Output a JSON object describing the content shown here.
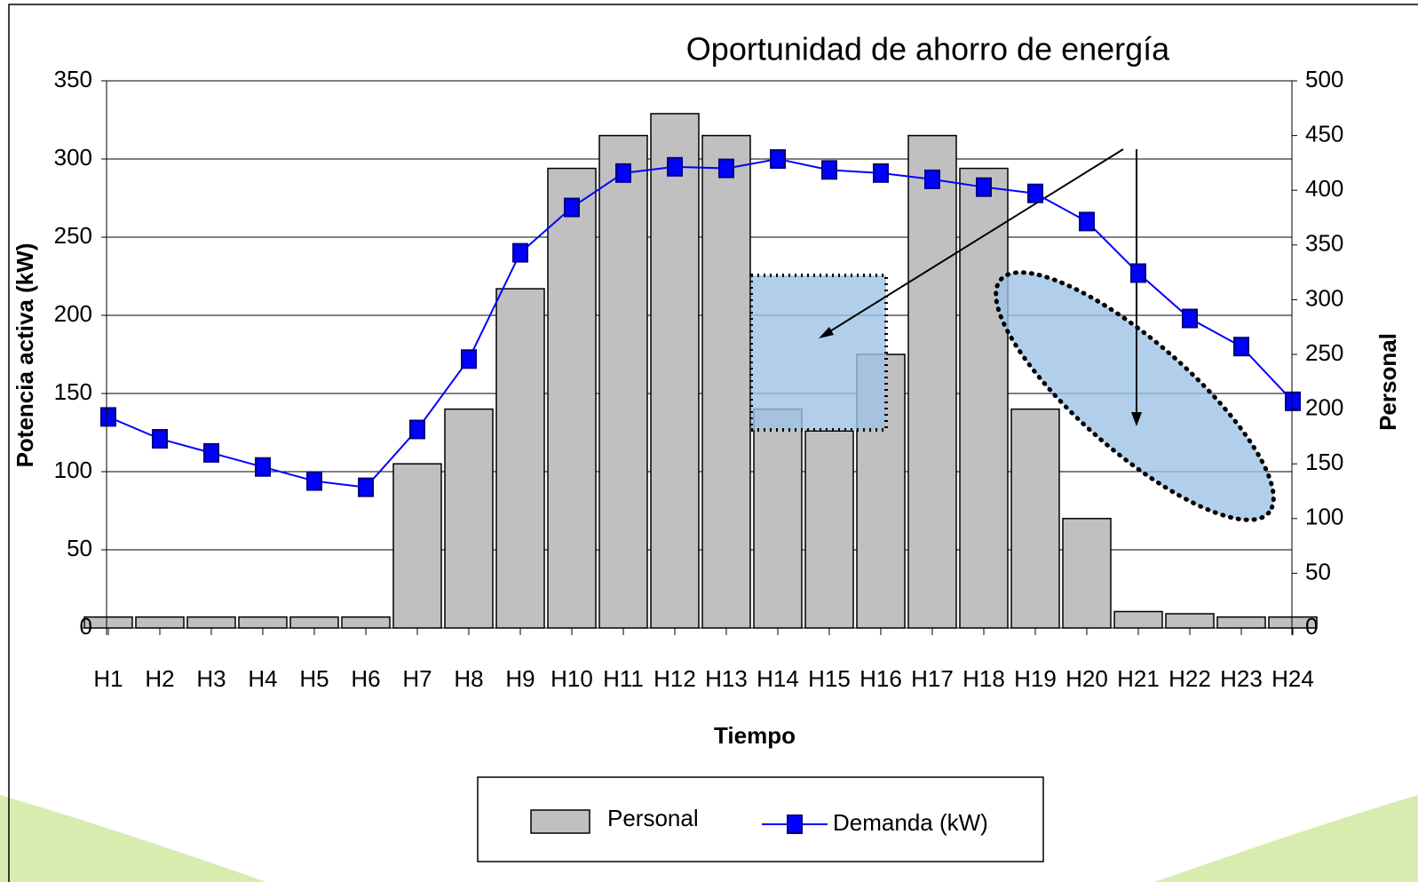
{
  "chart_data": {
    "type": "bar_line",
    "title": "Oportunidad de ahorro de energía",
    "y_label": "Potencia activa (kW)",
    "y2_label": "Personal",
    "x_label": "Tiempo",
    "categories": [
      "H1",
      "H2",
      "H3",
      "H4",
      "H5",
      "H6",
      "H7",
      "H8",
      "H9",
      "H10",
      "H11",
      "H12",
      "H13",
      "H14",
      "H15",
      "H16",
      "H17",
      "H18",
      "H19",
      "H20",
      "H21",
      "H22",
      "H23",
      "H24"
    ],
    "series": [
      {
        "name": "Personal",
        "type": "bar",
        "axis": "y2",
        "color": "#c0c0c0",
        "values": [
          10,
          10,
          10,
          10,
          10,
          10,
          150,
          200,
          310,
          420,
          450,
          470,
          450,
          200,
          180,
          250,
          450,
          420,
          200,
          100,
          15,
          13,
          10,
          10
        ]
      },
      {
        "name": "Demanda (kW)",
        "type": "line",
        "axis": "y",
        "color": "#0000ff",
        "values": [
          135,
          121,
          112,
          103,
          94,
          90,
          127,
          172,
          240,
          269,
          291,
          295,
          294,
          300,
          293,
          291,
          287,
          282,
          278,
          260,
          227,
          198,
          180,
          145
        ]
      }
    ],
    "ylim": [
      0,
      350
    ],
    "yticks": [
      0,
      50,
      100,
      150,
      200,
      250,
      300,
      350
    ],
    "y2lim": [
      0,
      500
    ],
    "y2ticks": [
      0,
      50,
      100,
      150,
      200,
      250,
      300,
      350,
      400,
      450,
      500
    ],
    "grid": true
  }
}
